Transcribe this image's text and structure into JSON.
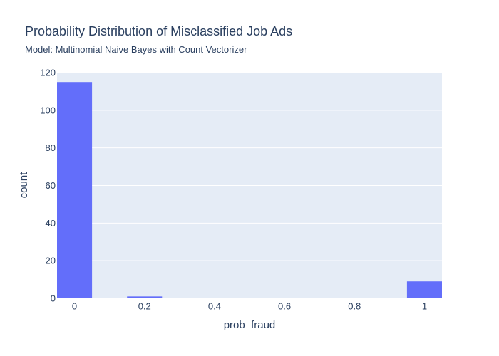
{
  "chart_data": {
    "type": "bar",
    "title": "Probability Distribution of Misclassified Job Ads",
    "subtitle": "Model: Multinomial Naive Bayes with Count Vectorizer",
    "xlabel": "prob_fraud",
    "ylabel": "count",
    "xlim": [
      -0.05,
      1.05
    ],
    "ylim": [
      0,
      120
    ],
    "x_ticks": [
      {
        "value": 0,
        "label": "0"
      },
      {
        "value": 0.2,
        "label": "0.2"
      },
      {
        "value": 0.4,
        "label": "0.4"
      },
      {
        "value": 0.6,
        "label": "0.6"
      },
      {
        "value": 0.8,
        "label": "0.8"
      },
      {
        "value": 1,
        "label": "1"
      }
    ],
    "y_ticks": [
      {
        "value": 0,
        "label": "0"
      },
      {
        "value": 20,
        "label": "20"
      },
      {
        "value": 40,
        "label": "40"
      },
      {
        "value": 60,
        "label": "60"
      },
      {
        "value": 80,
        "label": "80"
      },
      {
        "value": 100,
        "label": "100"
      },
      {
        "value": 120,
        "label": "120"
      }
    ],
    "bins": [
      {
        "start": -0.05,
        "end": 0.05,
        "count": 115
      },
      {
        "start": 0.15,
        "end": 0.25,
        "count": 1
      },
      {
        "start": 0.95,
        "end": 1.05,
        "count": 9
      }
    ],
    "bar_color": "#636efa",
    "plot_bg": "#e5ecf6",
    "grid": true,
    "grid_color": "#ffffff"
  }
}
